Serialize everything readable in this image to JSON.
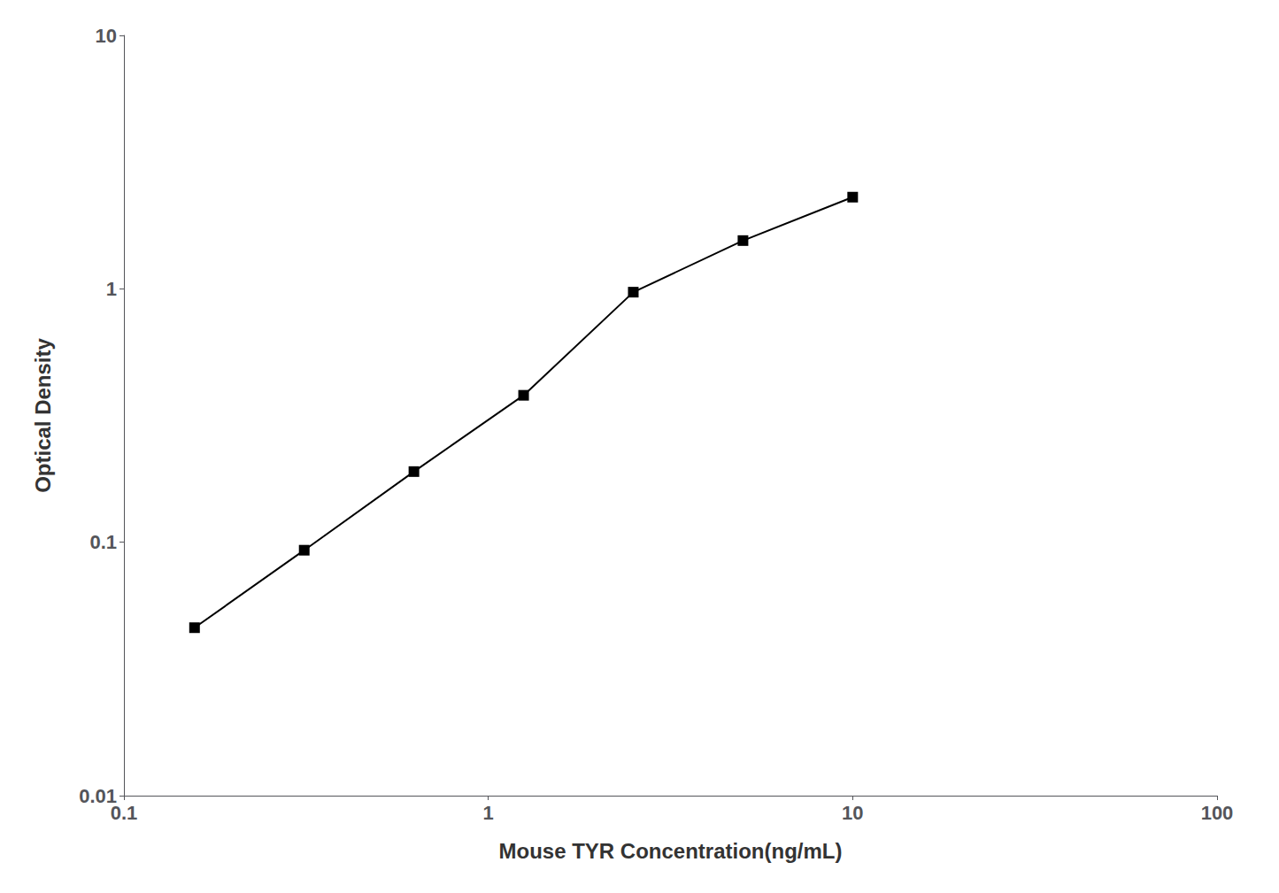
{
  "chart_data": {
    "type": "line",
    "x": [
      0.15625,
      0.3125,
      0.625,
      1.25,
      2.5,
      5.0,
      10.0
    ],
    "values": [
      0.046,
      0.093,
      0.19,
      0.38,
      0.97,
      1.55,
      2.3
    ],
    "xlabel": "Mouse TYR Concentration(ng/mL)",
    "ylabel": "Optical Density",
    "xlim": [
      0.1,
      100
    ],
    "ylim": [
      0.01,
      10
    ],
    "xticks": [
      0.1,
      1,
      10,
      100
    ],
    "yticks": [
      0.01,
      0.1,
      1,
      10
    ],
    "log": true,
    "grid": false,
    "marker": "square",
    "color": "black"
  }
}
